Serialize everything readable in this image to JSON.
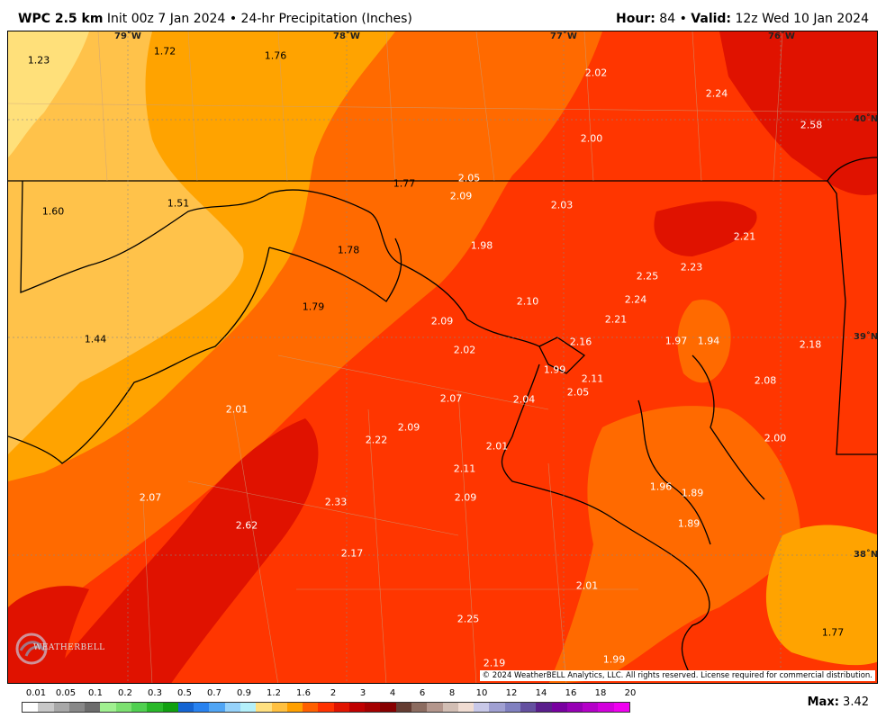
{
  "header": {
    "model": "WPC 2.5 km",
    "init": "Init 00z 7 Jan 2024",
    "product": "24-hr Precipitation (Inches)",
    "hour_label": "Hour:",
    "hour_value": "84",
    "valid_label": "Valid:",
    "valid_value": "12z Wed 10 Jan 2024"
  },
  "grid_labels": {
    "lon_79": "79˚W",
    "lon_78": "78˚W",
    "lon_77": "77˚W",
    "lon_76": "76˚W",
    "lat_40": "40˚N",
    "lat_39": "39˚N",
    "lat_38": "38˚N"
  },
  "values": [
    "1.23",
    "1.72",
    "1.76",
    "2.02",
    "2.24",
    "2.58",
    "2.00",
    "2.05",
    "1.77",
    "2.09",
    "2.03",
    "1.60",
    "1.51",
    "1.78",
    "1.98",
    "2.21",
    "2.25",
    "2.23",
    "2.24",
    "2.10",
    "1.79",
    "2.09",
    "2.21",
    "2.16",
    "1.97",
    "1.94",
    "2.18",
    "1.44",
    "2.02",
    "1.99",
    "2.11",
    "2.05",
    "2.08",
    "2.07",
    "2.04",
    "2.01",
    "2.09",
    "2.22",
    "2.00",
    "2.01",
    "2.11",
    "1.96",
    "1.89",
    "2.07",
    "2.09",
    "2.62",
    "2.33",
    "1.89",
    "2.17",
    "2.01",
    "2.25",
    "1.77",
    "2.19",
    "1.99"
  ],
  "copyright": "© 2024 WeatherBELL Analytics, LLC. All rights reserved. License required for commercial distribution.",
  "logo_text": "WEATHERBELL",
  "legend": {
    "labels": [
      "0.01",
      "0.05",
      "0.1",
      "0.2",
      "0.3",
      "0.5",
      "0.7",
      "0.9",
      "1.2",
      "1.6",
      "2",
      "3",
      "4",
      "6",
      "8",
      "10",
      "12",
      "14",
      "16",
      "18",
      "20"
    ],
    "colors": [
      "#ffffff",
      "#c8c8c8",
      "#a8a8a8",
      "#888888",
      "#6c6c6c",
      "#a0f090",
      "#7ce070",
      "#50d050",
      "#28b828",
      "#10a010",
      "#1464d2",
      "#2882f0",
      "#50a5f5",
      "#96d2fa",
      "#b4f0fa",
      "#ffe080",
      "#ffc040",
      "#ffa000",
      "#ff6000",
      "#ff3200",
      "#e11400",
      "#c00000",
      "#a50000",
      "#870000",
      "#643c32",
      "#8c6c60",
      "#b4968c",
      "#d2beb4",
      "#f0dcd2",
      "#c8c8e8",
      "#a0a0d2",
      "#8080c0",
      "#6450a0",
      "#5a1e8c",
      "#7800a0",
      "#9600b4",
      "#b400c8",
      "#d200dc",
      "#f000f0"
    ],
    "max_label": "Max:",
    "max_value": "3.42"
  }
}
